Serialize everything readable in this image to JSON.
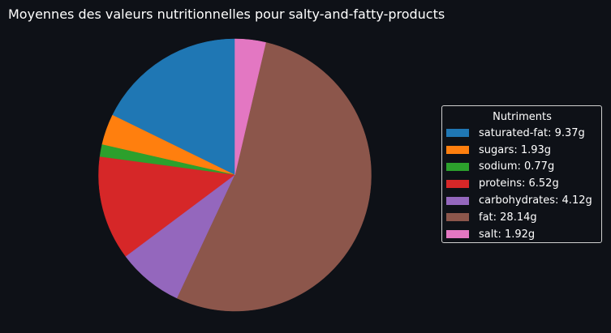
{
  "chart_data": {
    "type": "pie",
    "title": "Moyennes des valeurs nutritionnelles pour salty-and-fatty-products",
    "legend_title": "Nutriments",
    "legend_position": "right",
    "start_angle_deg": 90,
    "direction": "counterclockwise",
    "unit": "g",
    "slices": [
      {
        "label": "saturated-fat",
        "value": 9.37,
        "legend": "saturated-fat: 9.37g",
        "color": "#1f77b4"
      },
      {
        "label": "sugars",
        "value": 1.93,
        "legend": "sugars: 1.93g",
        "color": "#ff7f0e"
      },
      {
        "label": "sodium",
        "value": 0.77,
        "legend": "sodium: 0.77g",
        "color": "#2ca02c"
      },
      {
        "label": "proteins",
        "value": 6.52,
        "legend": "proteins: 6.52g",
        "color": "#d62728"
      },
      {
        "label": "carbohydrates",
        "value": 4.12,
        "legend": "carbohydrates: 4.12g",
        "color": "#9467bd"
      },
      {
        "label": "fat",
        "value": 28.14,
        "legend": "fat: 28.14g",
        "color": "#8c564b"
      },
      {
        "label": "salt",
        "value": 1.92,
        "legend": "salt: 1.92g",
        "color": "#e377c2"
      }
    ]
  }
}
